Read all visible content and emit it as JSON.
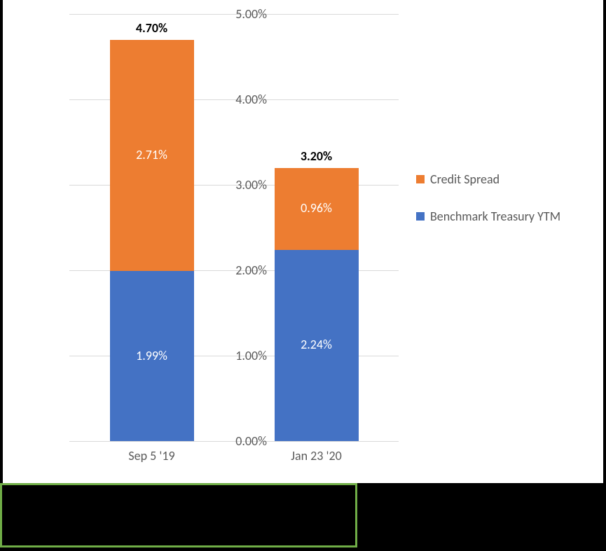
{
  "chart": {
    "type": "stacked-bar",
    "background_color": "#ffffff",
    "outer_background": "#000000",
    "grid_color": "#d9d9d9",
    "axis_label_color": "#595959",
    "axis_fontsize": 18,
    "y_axis": {
      "min": 0,
      "max": 5,
      "tick_step": 1,
      "ticks": [
        {
          "value": 0,
          "label": "0.00%"
        },
        {
          "value": 1,
          "label": "1.00%"
        },
        {
          "value": 2,
          "label": "2.00%"
        },
        {
          "value": 3,
          "label": "3.00%"
        },
        {
          "value": 4,
          "label": "4.00%"
        },
        {
          "value": 5,
          "label": "5.00%"
        }
      ]
    },
    "categories": [
      {
        "label": "Sep 5 '19",
        "total_label": "4.70%"
      },
      {
        "label": "Jan 23 '20",
        "total_label": "3.20%"
      }
    ],
    "series": [
      {
        "name": "Benchmark Treasury YTM",
        "color": "#4472c4",
        "values": [
          1.99,
          2.24
        ],
        "labels": [
          "1.99%",
          "2.24%"
        ]
      },
      {
        "name": "Credit Spread",
        "color": "#ed7d31",
        "values": [
          2.71,
          0.96
        ],
        "labels": [
          "2.71%",
          "0.96%"
        ]
      }
    ],
    "bar_label_color": "#ffffff",
    "bar_label_fontsize": 18,
    "total_label_color": "#000000",
    "total_label_fontsize": 18,
    "total_label_weight": "bold",
    "legend_fontsize": 18,
    "legend_color": "#595959",
    "green_box_border": "#70ad47"
  }
}
